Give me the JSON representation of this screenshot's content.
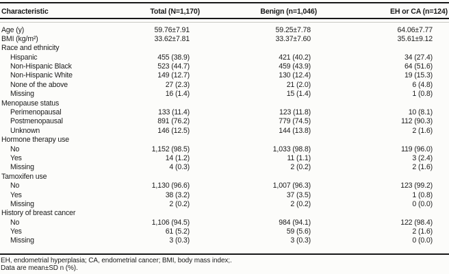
{
  "colors": {
    "background": "#fcfcfa",
    "text": "#1b1b1b",
    "rule": "#161616",
    "thin_rule": "#c9c9c4"
  },
  "table": {
    "columns": [
      "Characteristic",
      "Total (N=1,170)",
      "Benign (n=1,046)",
      "EH or CA (n=124)"
    ],
    "rows": [
      {
        "label": "Age (y)",
        "indent": 0,
        "section": false,
        "values": [
          "59.76±7.91",
          "59.25±7.78",
          "64.06±7.77"
        ]
      },
      {
        "label": "BMI (kg/m²)",
        "indent": 0,
        "section": false,
        "values": [
          "33.62±7.81",
          "33.37±7.60",
          "35.61±9.12"
        ]
      },
      {
        "label": "Race and ethnicity",
        "indent": 0,
        "section": true,
        "values": [
          "",
          "",
          ""
        ]
      },
      {
        "label": "Hispanic",
        "indent": 1,
        "section": false,
        "values": [
          "455 (38.9)",
          "421 (40.2)",
          "34 (27.4)"
        ]
      },
      {
        "label": "Non-Hispanic Black",
        "indent": 1,
        "section": false,
        "values": [
          "523 (44.7)",
          "459 (43.9)",
          "64 (51.6)"
        ]
      },
      {
        "label": "Non-Hispanic White",
        "indent": 1,
        "section": false,
        "values": [
          "149 (12.7)",
          "130 (12.4)",
          "19 (15.3)"
        ]
      },
      {
        "label": "None of the above",
        "indent": 1,
        "section": false,
        "values": [
          "27 (2.3)",
          "21 (2.0)",
          "6 (4.8)"
        ]
      },
      {
        "label": "Missing",
        "indent": 1,
        "section": false,
        "values": [
          "16 (1.4)",
          "15 (1.4)",
          "1 (0.8)"
        ]
      },
      {
        "label": "Menopause status",
        "indent": 0,
        "section": true,
        "values": [
          "",
          "",
          ""
        ]
      },
      {
        "label": "Perimenopausal",
        "indent": 1,
        "section": false,
        "values": [
          "133 (11.4)",
          "123 (11.8)",
          "10 (8.1)"
        ]
      },
      {
        "label": "Postmenopausal",
        "indent": 1,
        "section": false,
        "values": [
          "891 (76.2)",
          "779 (74.5)",
          "112 (90.3)"
        ]
      },
      {
        "label": "Unknown",
        "indent": 1,
        "section": false,
        "values": [
          "146 (12.5)",
          "144 (13.8)",
          "2 (1.6)"
        ]
      },
      {
        "label": "Hormone therapy use",
        "indent": 0,
        "section": true,
        "values": [
          "",
          "",
          ""
        ]
      },
      {
        "label": "No",
        "indent": 1,
        "section": false,
        "values": [
          "1,152 (98.5)",
          "1,033 (98.8)",
          "119 (96.0)"
        ]
      },
      {
        "label": "Yes",
        "indent": 1,
        "section": false,
        "values": [
          "14 (1.2)",
          "11 (1.1)",
          "3 (2.4)"
        ]
      },
      {
        "label": "Missing",
        "indent": 1,
        "section": false,
        "values": [
          "4 (0.3)",
          "2 (0.2)",
          "2 (1.6)"
        ]
      },
      {
        "label": "Tamoxifen use",
        "indent": 0,
        "section": true,
        "values": [
          "",
          "",
          ""
        ]
      },
      {
        "label": "No",
        "indent": 1,
        "section": false,
        "values": [
          "1,130 (96.6)",
          "1,007 (96.3)",
          "123 (99.2)"
        ]
      },
      {
        "label": "Yes",
        "indent": 1,
        "section": false,
        "values": [
          "38 (3.2)",
          "37 (3.5)",
          "1 (0.8)"
        ]
      },
      {
        "label": "Missing",
        "indent": 1,
        "section": false,
        "values": [
          "2 (0.2)",
          "2 (0.2)",
          "0 (0.0)"
        ]
      },
      {
        "label": "History of breast cancer",
        "indent": 0,
        "section": true,
        "values": [
          "",
          "",
          ""
        ]
      },
      {
        "label": "No",
        "indent": 1,
        "section": false,
        "values": [
          "1,106 (94.5)",
          "984 (94.1)",
          "122 (98.4)"
        ]
      },
      {
        "label": "Yes",
        "indent": 1,
        "section": false,
        "values": [
          "61 (5.2)",
          "59 (5.6)",
          "2 (1.6)"
        ]
      },
      {
        "label": "Missing",
        "indent": 1,
        "section": false,
        "values": [
          "3 (0.3)",
          "3 (0.3)",
          "0 (0.0)"
        ]
      }
    ]
  },
  "footnotes": {
    "abbreviations": "EH, endometrial hyperplasia; CA, endometrial cancer; BMI, body mass index;.",
    "data_format": "Data are mean±SD n (%)."
  }
}
